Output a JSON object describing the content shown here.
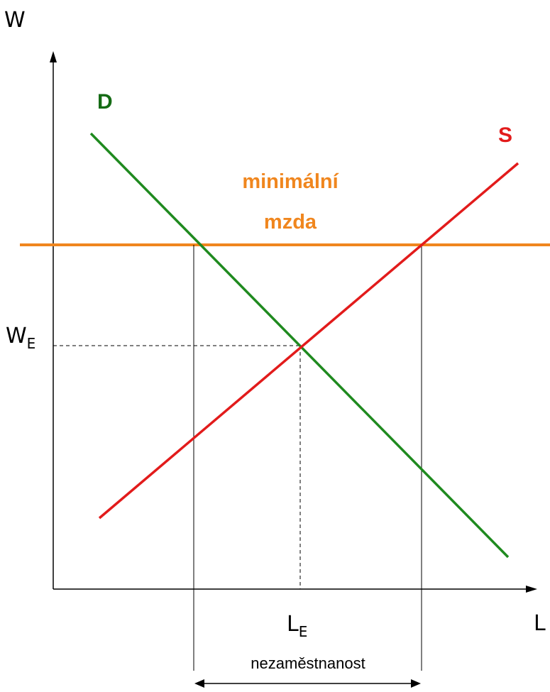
{
  "axes": {
    "y_label": "W",
    "x_label": "L",
    "we_base": "W",
    "we_sub": "E",
    "le_base": "L",
    "le_sub": "E"
  },
  "curves": {
    "demand_label": "D",
    "supply_label": "S"
  },
  "minimum_wage": {
    "line1": "minimální",
    "line2": "mzda"
  },
  "unemployment_label": "nezaměstnanost",
  "colors": {
    "demand": "#1f8a1f",
    "supply": "#e21b1b",
    "minimum_wage": "#f0861e",
    "axis": "#000000",
    "label_demand": "#156b15"
  }
}
